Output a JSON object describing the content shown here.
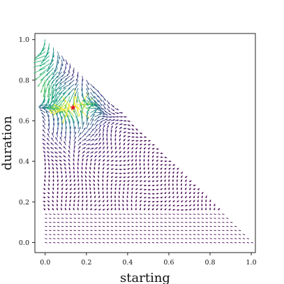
{
  "chart_data": {
    "type": "quiver",
    "title": "",
    "xlabel": "starting",
    "ylabel": "duration",
    "xlim": [
      -0.05,
      1.02
    ],
    "ylim": [
      1.03,
      -0.05
    ],
    "y_inverted": true,
    "xticks": [
      0.0,
      0.2,
      0.4,
      0.6,
      0.8,
      1.0
    ],
    "xtick_labels": [
      "0.0",
      "0.2",
      "0.4",
      "0.6",
      "0.8",
      "1.0"
    ],
    "yticks": [
      0.0,
      0.2,
      0.4,
      0.6,
      0.8,
      1.0
    ],
    "ytick_labels": [
      "0.0",
      "0.2",
      "0.4",
      "0.6",
      "0.8",
      "1.0"
    ],
    "grid": false,
    "colormap": "viridis",
    "domain": "starting + duration <= 1",
    "grid_step": 0.02,
    "optimum": {
      "x": 0.135,
      "y": 0.665,
      "marker": "star",
      "color": "#e8141c"
    }
  }
}
